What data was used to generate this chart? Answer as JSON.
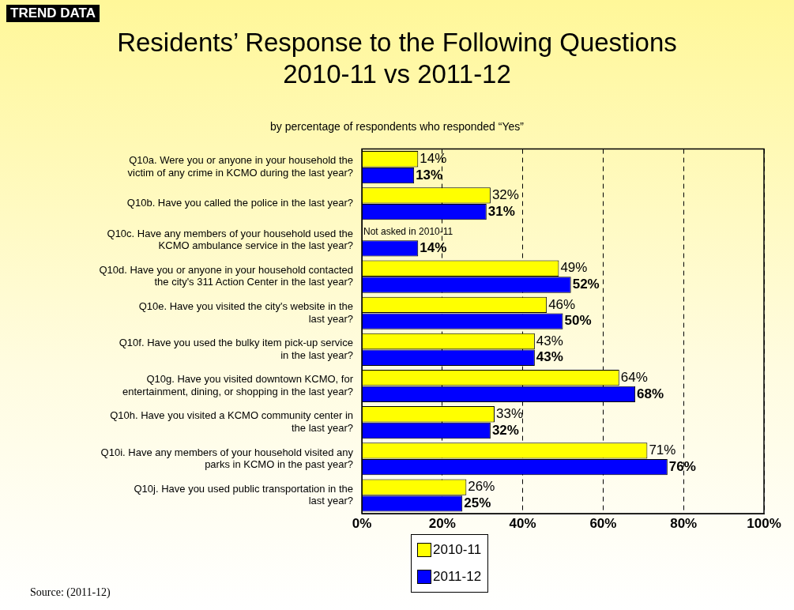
{
  "chart_data": {
    "type": "bar",
    "orientation": "horizontal",
    "title": "Residents’ Response to the Following Questions\n2010-11 vs 2011-12",
    "subtitle": "by percentage of respondents who responded “Yes”",
    "categories": [
      "Q10a. Were you or anyone in your household the victim of any crime in KCMO during the last year?",
      "Q10b. Have you called the police in the last year?",
      "Q10c. Have any members of your household used the KCMO ambulance service in the last year?",
      "Q10d. Have you or anyone in your household contacted the city's 311 Action Center in the last year?",
      "Q10e. Have you visited the city's website in the last year?",
      "Q10f. Have you used the bulky item pick-up service in the last year?",
      "Q10g. Have you visited downtown KCMO, for entertainment, dining, or shopping in the last year?",
      "Q10h. Have you visited a KCMO community center in the last year?",
      "Q10i. Have any members of your household visited any parks in KCMO in the past year?",
      "Q10j. Have you used public transportation in the last year?"
    ],
    "series": [
      {
        "name": "2010-11",
        "color": "#ffff00",
        "values": [
          14,
          32,
          null,
          49,
          46,
          43,
          64,
          33,
          71,
          26
        ],
        "value_labels": [
          "14%",
          "32%",
          null,
          "49%",
          "46%",
          "43%",
          "64%",
          "33%",
          "71%",
          "26%"
        ]
      },
      {
        "name": "2011-12",
        "color": "#0000ff",
        "values": [
          13,
          31,
          14,
          52,
          50,
          43,
          68,
          32,
          76,
          25
        ],
        "value_labels": [
          "13%",
          "31%",
          "14%",
          "52%",
          "50%",
          "43%",
          "68%",
          "32%",
          "76%",
          "25%"
        ]
      }
    ],
    "xlim": [
      0,
      100
    ],
    "xticks": [
      {
        "value": 0,
        "label": "0%"
      },
      {
        "value": 20,
        "label": "20%"
      },
      {
        "value": 40,
        "label": "40%"
      },
      {
        "value": 60,
        "label": "60%"
      },
      {
        "value": 80,
        "label": "80%"
      },
      {
        "value": 100,
        "label": "100%"
      }
    ],
    "grid": "x",
    "line_style": "dashed",
    "legend": "bottom",
    "annotations": [
      "TREND DATA",
      "Source: (2011-12)",
      {
        "text": "Not asked in 2010-11",
        "x": 0,
        "y": "Q10c. Have any members of your household used the KCMO ambulance service in the last year?"
      }
    ]
  }
}
